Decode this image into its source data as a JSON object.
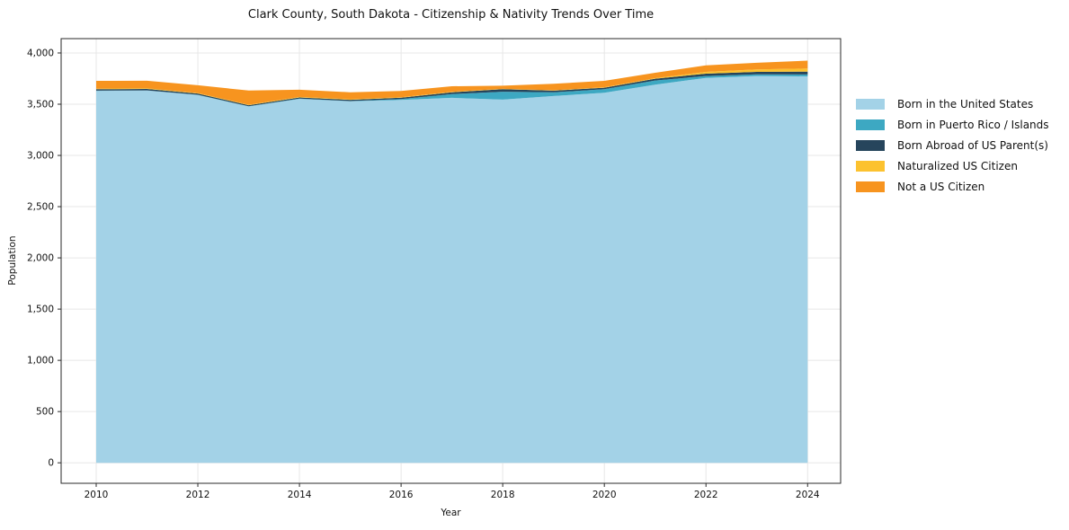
{
  "figure": {
    "title": "Clark County, South Dakota - Citizenship & Nativity Trends Over Time",
    "background_color": "#ffffff",
    "grid_color": "#e7e7e7",
    "spine_color": "#2a2a2a",
    "text_color": "#111111"
  },
  "chart_data": {
    "type": "area",
    "stacked": true,
    "title": "Clark County, South Dakota - Citizenship & Nativity Trends Over Time",
    "xlabel": "Year",
    "ylabel": "Population",
    "grid": true,
    "legend_position": "right-outside",
    "x": [
      2010,
      2011,
      2012,
      2013,
      2014,
      2015,
      2016,
      2017,
      2018,
      2019,
      2020,
      2021,
      2022,
      2023,
      2024
    ],
    "series": [
      {
        "name": "Born in the United States",
        "color": "#a3d2e7",
        "values": [
          3630,
          3633,
          3590,
          3478,
          3552,
          3528,
          3542,
          3562,
          3545,
          3580,
          3611,
          3691,
          3757,
          3775,
          3772
        ]
      },
      {
        "name": "Born in Puerto Rico / Islands",
        "color": "#3da8c2",
        "values": [
          2,
          2,
          2,
          2,
          2,
          3,
          8,
          37,
          77,
          36,
          35,
          40,
          18,
          17,
          18
        ]
      },
      {
        "name": "Born Abroad of US Parent(s)",
        "color": "#26455c",
        "values": [
          14,
          14,
          12,
          10,
          12,
          12,
          13,
          18,
          24,
          16,
          15,
          18,
          23,
          24,
          28
        ]
      },
      {
        "name": "Naturalized US Citizen",
        "color": "#fcc22f",
        "values": [
          6,
          6,
          5,
          5,
          5,
          5,
          5,
          4,
          4,
          4,
          5,
          5,
          18,
          24,
          30
        ]
      },
      {
        "name": "Not a US Citizen",
        "color": "#f7941f",
        "values": [
          76,
          74,
          76,
          138,
          70,
          69,
          62,
          54,
          31,
          63,
          62,
          53,
          64,
          64,
          77
        ]
      }
    ],
    "totals": [
      3728,
      3729,
      3685,
      3633,
      3641,
      3617,
      3630,
      3675,
      3681,
      3699,
      3728,
      3807,
      3880,
      3904,
      3925
    ],
    "xticks": [
      2010,
      2012,
      2014,
      2016,
      2018,
      2020,
      2022,
      2024
    ],
    "xtick_labels": [
      "2010",
      "2012",
      "2014",
      "2016",
      "2018",
      "2020",
      "2022",
      "2024"
    ],
    "yticks": [
      0,
      500,
      1000,
      1500,
      2000,
      2500,
      3000,
      3500,
      4000
    ],
    "ytick_labels": [
      "0",
      "500",
      "1,000",
      "1,500",
      "2,000",
      "2,500",
      "3,000",
      "3,500",
      "4,000"
    ],
    "xlim": [
      2009.31,
      2024.65
    ],
    "ylim": [
      -200,
      4140
    ]
  }
}
